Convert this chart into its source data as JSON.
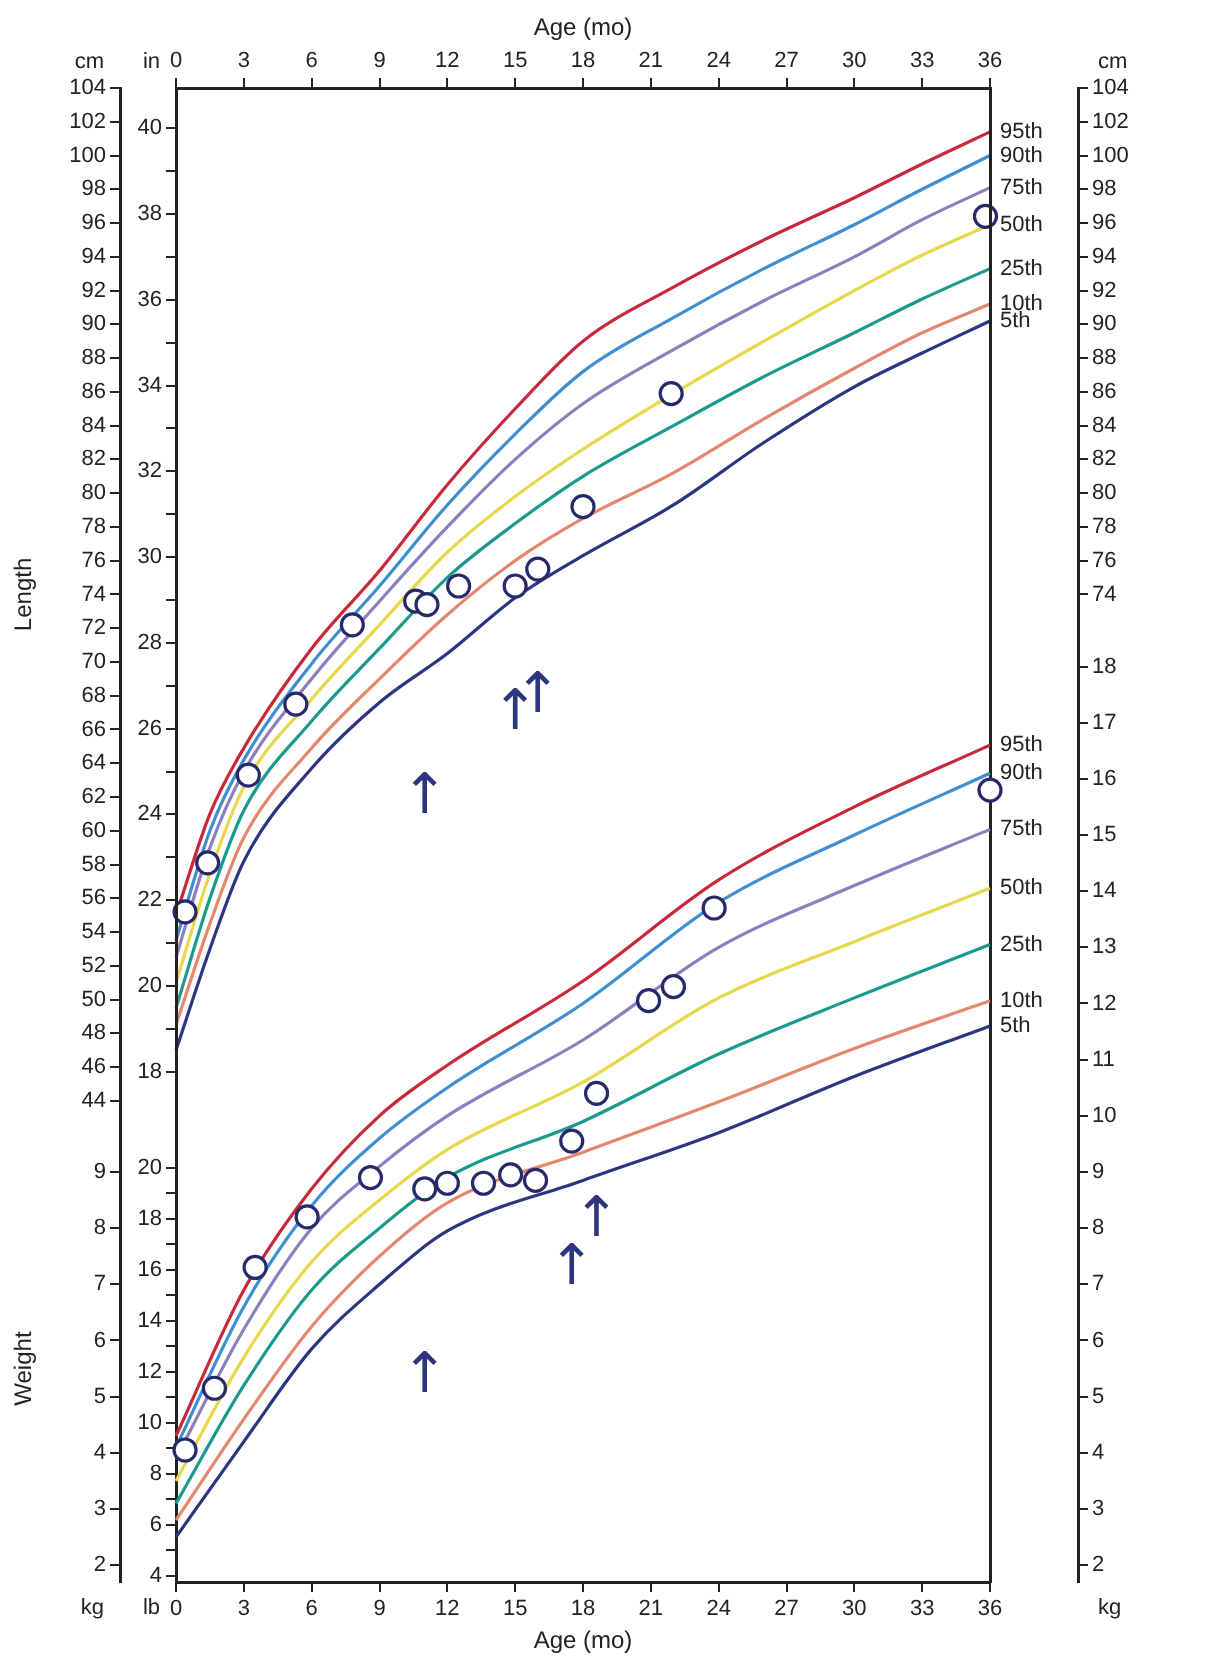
{
  "chart_data": [
    {
      "type": "line",
      "xlabel": "Age (mo)",
      "ylabel": "Length",
      "xlim": [
        0,
        36
      ],
      "xticks": [
        0,
        3,
        6,
        9,
        12,
        15,
        18,
        21,
        24,
        27,
        30,
        33,
        36
      ],
      "ylim": [
        15.5,
        104
      ],
      "yticks": [
        44,
        46,
        48,
        50,
        52,
        54,
        56,
        58,
        60,
        62,
        64,
        66,
        68,
        70,
        72,
        74,
        76,
        78,
        80,
        82,
        84,
        86,
        88,
        90,
        92,
        94,
        96,
        98,
        100,
        102,
        104
      ],
      "y3lim": [
        6.1,
        40.94
      ],
      "y3ticks": [
        18,
        {
          "value": 19,
          "label": null
        },
        20,
        {
          "value": 21,
          "label": null
        },
        22,
        {
          "value": 23,
          "label": null
        },
        24,
        {
          "value": 25,
          "label": null
        },
        26,
        {
          "value": 27,
          "label": null
        },
        28,
        {
          "value": 29,
          "label": null
        },
        30,
        {
          "value": 31,
          "label": null
        },
        32,
        {
          "value": 33,
          "label": null
        },
        34,
        {
          "value": 35,
          "label": null
        },
        36,
        {
          "value": 37,
          "label": null
        },
        38,
        {
          "value": 39,
          "label": null
        },
        40
      ],
      "y2lim": [
        15.5,
        104
      ],
      "y2ticks": [
        74,
        76,
        78,
        80,
        82,
        84,
        86,
        88,
        90,
        92,
        94,
        96,
        98,
        100,
        102,
        104
      ],
      "grid": false,
      "legend": false,
      "marker": "none",
      "annotations": [
        "cm",
        "in",
        "cm",
        {
          "text": "↑",
          "x": 11,
          "y": 69.5
        },
        {
          "text": "↑",
          "x": 15.0,
          "y": 74.5
        },
        {
          "text": "↑",
          "x": 16.0,
          "y": 75.5
        }
      ],
      "series": [
        {
          "name": "95th",
          "color": "#c8283c",
          "x": [
            0,
            1.5,
            3,
            6,
            9,
            12,
            15,
            18,
            22,
            26,
            30,
            33,
            36
          ],
          "values": [
            55,
            61,
            64.9,
            70.8,
            75.4,
            80.5,
            85,
            89.0,
            92.2,
            95,
            97.5,
            99.5,
            101.4
          ]
        },
        {
          "name": "90th",
          "color": "#3f8fd0",
          "x": [
            0,
            1.5,
            3,
            6,
            9,
            12,
            15,
            18,
            22,
            26,
            30,
            33,
            36
          ],
          "values": [
            53.5,
            60,
            64.2,
            69.9,
            74.5,
            79.3,
            83.5,
            87.2,
            90.4,
            93.3,
            95.9,
            98,
            100.0
          ]
        },
        {
          "name": "75th",
          "color": "#8c7fbf",
          "x": [
            0,
            1.5,
            3,
            6,
            9,
            12,
            15,
            18,
            22,
            26,
            30,
            33,
            36
          ],
          "values": [
            52.5,
            59,
            63.5,
            69.0,
            73.6,
            78,
            82,
            85.3,
            88.5,
            91.4,
            94.0,
            96.2,
            98.1
          ]
        },
        {
          "name": "50th",
          "color": "#e8d84a",
          "x": [
            0,
            1.5,
            3,
            6,
            9,
            12,
            15,
            18,
            22,
            26,
            30,
            33,
            36
          ],
          "values": [
            51,
            57.5,
            62.6,
            67.8,
            72.2,
            76.5,
            79.8,
            82.6,
            85.9,
            89,
            92.0,
            94.1,
            95.9
          ]
        },
        {
          "name": "25th",
          "color": "#1a9a8c",
          "x": [
            0,
            1.5,
            3,
            6,
            9,
            12,
            15,
            18,
            22,
            26,
            30,
            33,
            36
          ],
          "values": [
            49.5,
            56,
            61.2,
            66.5,
            70.8,
            75.0,
            78.2,
            81.0,
            84.0,
            86.9,
            89.5,
            91.5,
            93.3
          ]
        },
        {
          "name": "10th",
          "color": "#e3876f",
          "x": [
            0,
            1.5,
            3,
            6,
            9,
            12,
            15,
            18,
            22,
            26,
            30,
            33,
            36
          ],
          "values": [
            48.5,
            54.5,
            59.6,
            64.9,
            69.0,
            72.8,
            76.0,
            78.5,
            81.2,
            84.4,
            87.4,
            89.5,
            91.2
          ]
        },
        {
          "name": "5th",
          "color": "#2c3680",
          "x": [
            0,
            1.5,
            3,
            6,
            9,
            12,
            15,
            18,
            22,
            26,
            30,
            33,
            36
          ],
          "values": [
            47,
            53,
            58.2,
            63.7,
            67.6,
            70.5,
            73.8,
            76.3,
            79.3,
            83,
            86.3,
            88.3,
            90.2
          ]
        },
        {
          "type": "scatter",
          "marker": "circle",
          "color": "#262a6b",
          "x": [
            0.4,
            1.4,
            3.2,
            5.3,
            7.8,
            10.6,
            11.1,
            12.5,
            15.0,
            16.0,
            18.0,
            21.9,
            35.8
          ],
          "values": [
            55.2,
            58.1,
            63.3,
            67.5,
            72.2,
            73.6,
            73.4,
            74.5,
            74.5,
            75.5,
            79.2,
            85.9,
            96.4
          ]
        }
      ]
    },
    {
      "type": "line",
      "xlabel": "Age (mo)",
      "ylabel": "Weight",
      "xlim": [
        0,
        36
      ],
      "xticks": [
        0,
        3,
        6,
        9,
        12,
        15,
        18,
        21,
        24,
        27,
        30,
        33,
        36
      ],
      "ylim": [
        1.7,
        28.3
      ],
      "yticks": [
        2,
        3,
        4,
        5,
        6,
        7,
        8,
        9
      ],
      "y3lim": [
        3.75,
        62.39
      ],
      "y3ticks": [
        4,
        {
          "value": 5,
          "label": null
        },
        6,
        {
          "value": 7,
          "label": null
        },
        8,
        {
          "value": 9,
          "label": null
        },
        10,
        {
          "value": 11,
          "label": null
        },
        12,
        {
          "value": 13,
          "label": null
        },
        14,
        {
          "value": 15,
          "label": null
        },
        16,
        {
          "value": 17,
          "label": null
        },
        18,
        {
          "value": 19,
          "label": null
        },
        20
      ],
      "y2lim": [
        1.7,
        28.3
      ],
      "y2ticks": [
        2,
        3,
        4,
        5,
        6,
        7,
        8,
        9,
        10,
        11,
        12,
        13,
        14,
        15,
        16,
        17,
        18
      ],
      "grid": false,
      "legend": false,
      "marker": "none",
      "annotations": [
        "kg",
        "lb",
        "kg",
        {
          "text": "↑",
          "x": 11,
          "y": 7.63
        },
        {
          "text": "↑",
          "x": 17.5,
          "y": 9.55
        },
        {
          "text": "↑",
          "x": 18.6,
          "y": 10.4
        }
      ],
      "series": [
        {
          "name": "95th",
          "color": "#c8283c",
          "x": [
            0,
            3,
            6,
            9,
            12,
            18,
            24,
            30,
            36
          ],
          "values": [
            4.3,
            6.9,
            8.7,
            10.0,
            10.9,
            12.4,
            14.2,
            15.5,
            16.6
          ]
        },
        {
          "name": "90th",
          "color": "#3f8fd0",
          "x": [
            0,
            3,
            6,
            9,
            12,
            18,
            24,
            30,
            36
          ],
          "values": [
            4.1,
            6.6,
            8.4,
            9.6,
            10.5,
            12.0,
            13.8,
            15.0,
            16.1
          ]
        },
        {
          "name": "75th",
          "color": "#8c7fbf",
          "x": [
            0,
            3,
            6,
            9,
            12,
            18,
            24,
            30,
            36
          ],
          "values": [
            3.9,
            6.2,
            8.0,
            9.1,
            10.0,
            11.35,
            13.0,
            14.1,
            15.1
          ]
        },
        {
          "name": "50th",
          "color": "#e8d84a",
          "x": [
            0,
            3,
            6,
            9,
            12,
            18,
            24,
            30,
            36
          ],
          "values": [
            3.5,
            5.7,
            7.4,
            8.5,
            9.4,
            10.6,
            12.1,
            13.1,
            14.05
          ]
        },
        {
          "name": "25th",
          "color": "#1a9a8c",
          "x": [
            0,
            3,
            6,
            9,
            12,
            18,
            24,
            30,
            36
          ],
          "values": [
            3.1,
            5.2,
            6.9,
            8.0,
            8.9,
            9.9,
            11.1,
            12.1,
            13.05
          ]
        },
        {
          "name": "10th",
          "color": "#e3876f",
          "x": [
            0,
            3,
            6,
            9,
            12,
            18,
            24,
            30,
            36
          ],
          "values": [
            2.8,
            4.6,
            6.25,
            7.5,
            8.45,
            9.35,
            10.25,
            11.2,
            12.05
          ]
        },
        {
          "name": "5th",
          "color": "#2c3680",
          "x": [
            0,
            3,
            6,
            9,
            12,
            18,
            24,
            30,
            36
          ],
          "values": [
            2.5,
            4.2,
            5.85,
            7.0,
            7.95,
            8.85,
            9.7,
            10.7,
            11.6
          ]
        },
        {
          "type": "scatter",
          "marker": "circle",
          "color": "#262a6b",
          "x": [
            0.4,
            1.7,
            3.5,
            5.8,
            8.6,
            11.0,
            12.0,
            13.6,
            14.8,
            15.9,
            17.5,
            18.6,
            20.9,
            22.0,
            23.8,
            36.0
          ],
          "values": [
            4.05,
            5.15,
            7.3,
            8.2,
            8.9,
            8.7,
            8.8,
            8.8,
            8.95,
            8.85,
            9.55,
            10.4,
            12.05,
            12.3,
            13.7,
            15.8
          ]
        }
      ]
    }
  ]
}
